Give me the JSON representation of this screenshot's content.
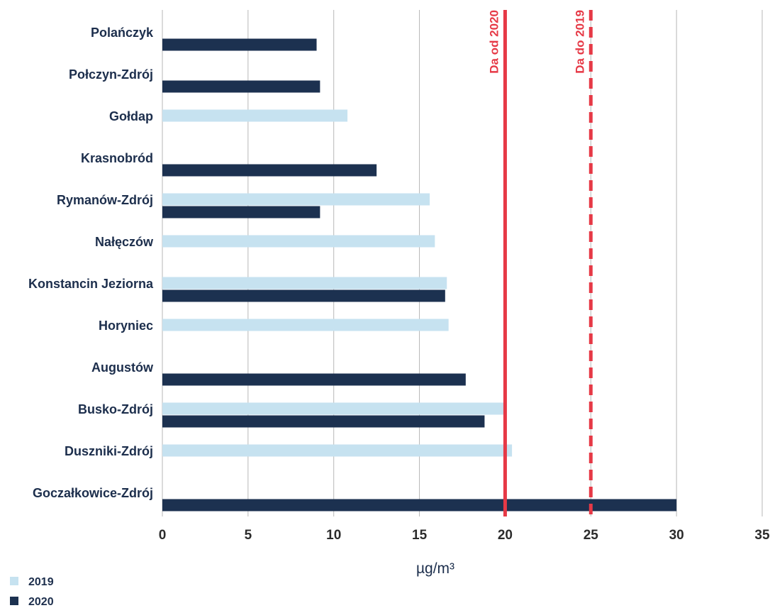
{
  "chart_data": {
    "type": "bar",
    "orientation": "horizontal",
    "categories": [
      "Polańczyk",
      "Połczyn-Zdrój",
      "Gołdap",
      "Krasnobród",
      "Rymanów-Zdrój",
      "Nałęczów",
      "Konstancin Jeziorna",
      "Horyniec",
      "Augustów",
      "Busko-Zdrój",
      "Duszniki-Zdrój",
      "Goczałkowice-Zdrój"
    ],
    "series": [
      {
        "name": "2019",
        "color": "#c6e2f0",
        "values": [
          null,
          null,
          10.8,
          null,
          15.6,
          15.9,
          16.6,
          16.7,
          null,
          19.9,
          20.4,
          null
        ]
      },
      {
        "name": "2020",
        "color": "#1c3150",
        "values": [
          9.0,
          9.2,
          null,
          12.5,
          9.2,
          null,
          16.5,
          null,
          17.7,
          18.8,
          null,
          30.0
        ]
      }
    ],
    "xlim": [
      0,
      35
    ],
    "xticks": [
      "0",
      "5",
      "10",
      "15",
      "20",
      "25",
      "30",
      "35"
    ],
    "xlabel": "µg/m³",
    "grid": true,
    "legend_position": "bottom-left",
    "reference_lines": [
      {
        "label": "Da od 2020",
        "value": 20,
        "style": "solid",
        "color": "#e63946"
      },
      {
        "label": "Da do 2019",
        "value": 25,
        "style": "dashed",
        "color": "#e63946"
      }
    ]
  }
}
